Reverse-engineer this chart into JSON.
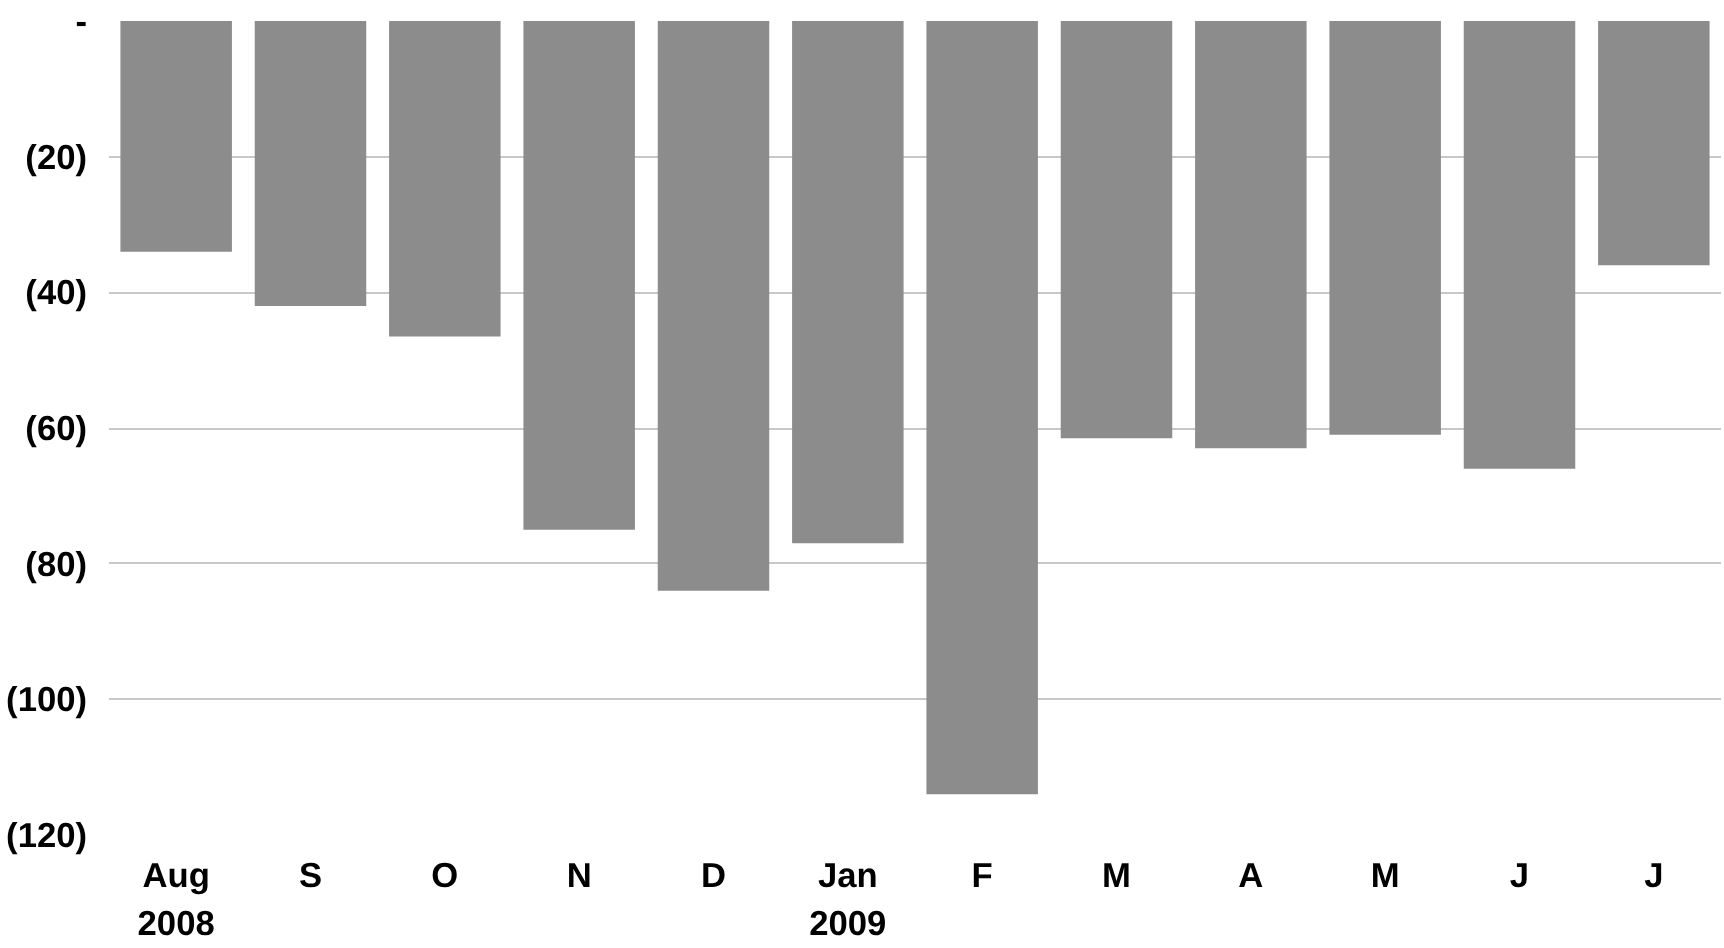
{
  "chart_data": {
    "type": "bar",
    "categories": [
      "Aug\n2008",
      "S",
      "O",
      "N",
      "D",
      "Jan\n2009",
      "F",
      "M",
      "A",
      "M",
      "J",
      "J"
    ],
    "values": [
      -34,
      -42,
      -46.5,
      -75,
      -84,
      -77,
      -114,
      -61.5,
      -63,
      -61,
      -66,
      -36
    ],
    "color": "#8c8c8c",
    "ylim": [
      -120,
      0
    ],
    "yticks": [
      {
        "value": 0,
        "label": "-"
      },
      {
        "value": -20,
        "label": "(20)"
      },
      {
        "value": -40,
        "label": "(40)"
      },
      {
        "value": -60,
        "label": "(60)"
      },
      {
        "value": -80,
        "label": "(80)"
      },
      {
        "value": -100,
        "label": "(100)"
      },
      {
        "value": -120,
        "label": "(120)"
      }
    ],
    "grid": "y"
  }
}
